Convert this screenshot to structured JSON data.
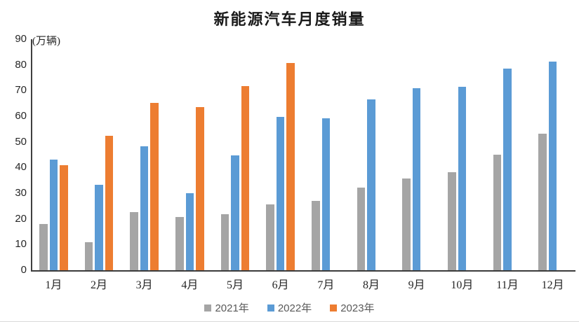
{
  "title": "新能源汽车月度销量",
  "y_axis_unit": "(万辆)",
  "chart_data": {
    "type": "bar",
    "title": "新能源汽车月度销量",
    "unit_label": "(万辆)",
    "xlabel": "",
    "ylabel": "万辆",
    "ylim": [
      0,
      90
    ],
    "y_ticks": [
      0,
      10,
      20,
      30,
      40,
      50,
      60,
      70,
      80,
      90
    ],
    "grid": false,
    "legend_position": "bottom",
    "categories": [
      "1月",
      "2月",
      "3月",
      "4月",
      "5月",
      "6月",
      "7月",
      "8月",
      "9月",
      "10月",
      "11月",
      "12月"
    ],
    "series": [
      {
        "name": "2021年",
        "color": "#A5A5A5",
        "values": [
          17.9,
          11.0,
          22.6,
          20.6,
          21.7,
          25.6,
          27.1,
          32.1,
          35.7,
          38.3,
          45.0,
          53.1
        ]
      },
      {
        "name": "2022年",
        "color": "#5B9BD5",
        "values": [
          43.1,
          33.4,
          48.4,
          29.9,
          44.7,
          59.6,
          59.3,
          66.6,
          70.8,
          71.4,
          78.6,
          81.4
        ]
      },
      {
        "name": "2023年",
        "color": "#ED7D31",
        "values": [
          40.8,
          52.5,
          65.3,
          63.6,
          71.7,
          80.6,
          null,
          null,
          null,
          null,
          null,
          null
        ]
      }
    ]
  }
}
